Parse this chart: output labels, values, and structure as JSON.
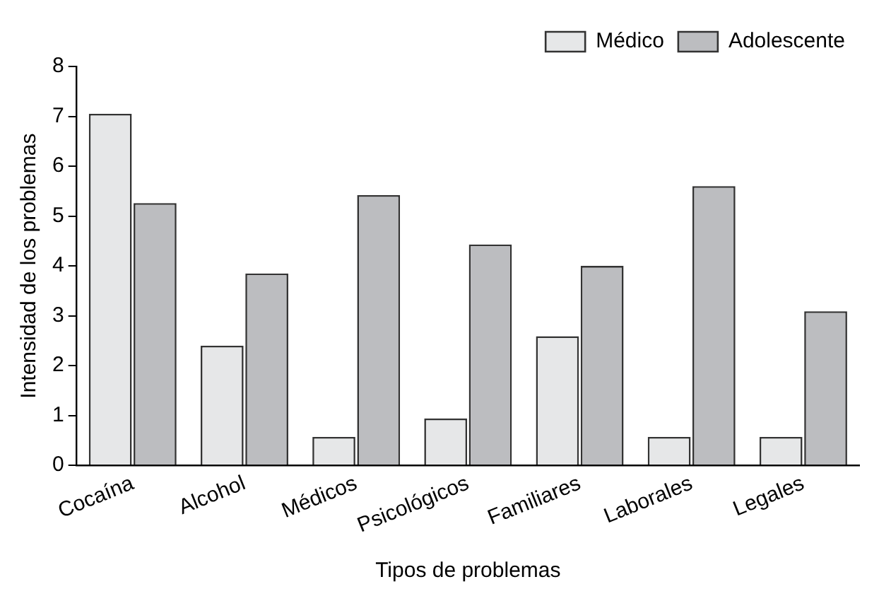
{
  "chart_data": {
    "type": "bar",
    "xlabel": "Tipos de problemas",
    "ylabel": "Intensidad de los problemas",
    "categories": [
      "Cocaína",
      "Alcohol",
      "Médicos",
      "Psicológicos",
      "Familiares",
      "Laborales",
      "Legales"
    ],
    "series": [
      {
        "name": "Médico",
        "color": "#e6e7e8",
        "values": [
          7.05,
          2.4,
          0.57,
          0.94,
          2.59,
          0.57,
          0.57
        ]
      },
      {
        "name": "Adolescente",
        "color": "#bcbdc0",
        "values": [
          5.26,
          3.85,
          5.42,
          4.43,
          4.0,
          5.6,
          3.09
        ]
      }
    ],
    "ylim": [
      0,
      8
    ],
    "yticks": [
      0,
      1,
      2,
      3,
      4,
      5,
      6,
      7,
      8
    ],
    "grid": false,
    "legend": "top right"
  }
}
